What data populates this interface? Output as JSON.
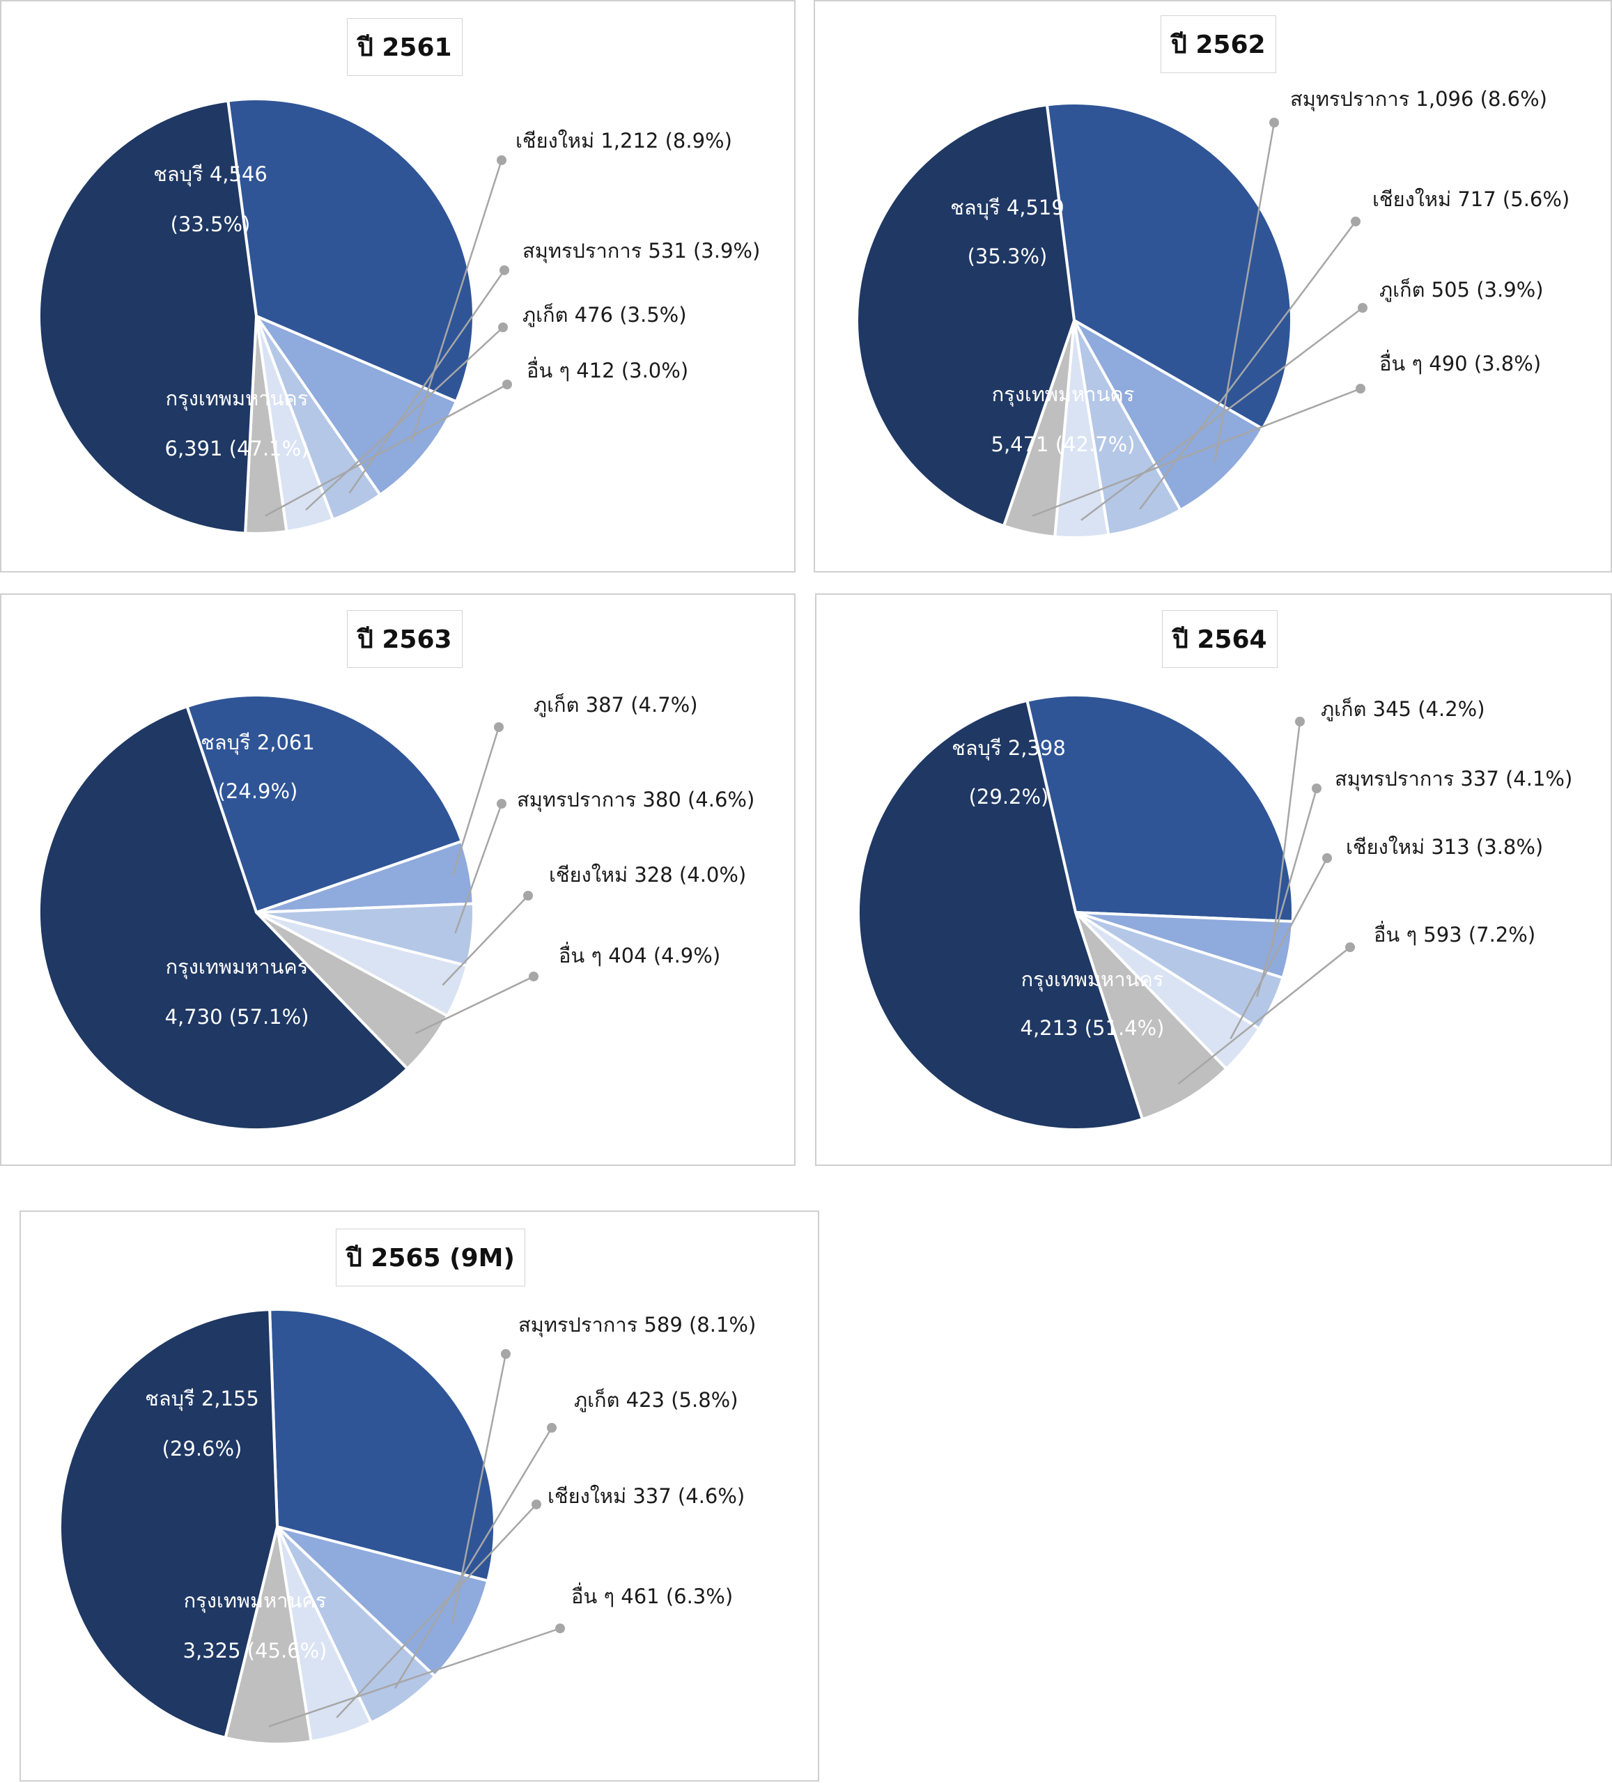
{
  "chart_data": [
    {
      "type": "pie",
      "title": "ปี 2561",
      "slices": [
        {
          "name": "ชลบุรี",
          "value": 4546,
          "pct": "33.5%",
          "label": "ชลบุรี 4,546",
          "label2": "(33.5%)",
          "color": "#2f5597"
        },
        {
          "name": "เชียงใหม่",
          "value": 1212,
          "pct": "8.9%",
          "label": "เชียงใหม่ 1,212 (8.9%)",
          "color": "#8faadc"
        },
        {
          "name": "สมุทรปราการ",
          "value": 531,
          "pct": "3.9%",
          "label": "สมุทรปราการ 531 (3.9%)",
          "color": "#b4c7e7"
        },
        {
          "name": "ภูเก็ต",
          "value": 476,
          "pct": "3.5%",
          "label": "ภูเก็ต 476 (3.5%)",
          "color": "#dae3f3"
        },
        {
          "name": "อื่น ๆ",
          "value": 412,
          "pct": "3.0%",
          "label": "อื่น ๆ 412 (3.0%)",
          "color": "#bfbfbf"
        },
        {
          "name": "กรุงเทพมหานคร",
          "value": 6391,
          "pct": "47.1%",
          "label": "กรุงเทพมหานคร",
          "label2": "6,391 (47.1%)",
          "color": "#1f3864"
        }
      ]
    },
    {
      "type": "pie",
      "title": "ปี 2562",
      "slices": [
        {
          "name": "ชลบุรี",
          "value": 4519,
          "pct": "35.3%",
          "label": "ชลบุรี 4,519",
          "label2": "(35.3%)",
          "color": "#2f5597"
        },
        {
          "name": "สมุทรปราการ",
          "value": 1096,
          "pct": "8.6%",
          "label": "สมุทรปราการ 1,096 (8.6%)",
          "color": "#8faadc"
        },
        {
          "name": "เชียงใหม่",
          "value": 717,
          "pct": "5.6%",
          "label": "เชียงใหม่ 717 (5.6%)",
          "color": "#b4c7e7"
        },
        {
          "name": "ภูเก็ต",
          "value": 505,
          "pct": "3.9%",
          "label": "ภูเก็ต 505 (3.9%)",
          "color": "#dae3f3"
        },
        {
          "name": "อื่น ๆ",
          "value": 490,
          "pct": "3.8%",
          "label": "อื่น ๆ 490 (3.8%)",
          "color": "#bfbfbf"
        },
        {
          "name": "กรุงเทพมหานคร",
          "value": 5471,
          "pct": "42.7%",
          "label": "กรุงเทพมหานคร",
          "label2": "5,471 (42.7%)",
          "color": "#1f3864"
        }
      ]
    },
    {
      "type": "pie",
      "title": "ปี 2563",
      "slices": [
        {
          "name": "ชลบุรี",
          "value": 2061,
          "pct": "24.9%",
          "label": "ชลบุรี 2,061",
          "label2": "(24.9%)",
          "color": "#2f5597"
        },
        {
          "name": "ภูเก็ต",
          "value": 387,
          "pct": "4.7%",
          "label": "ภูเก็ต 387 (4.7%)",
          "color": "#8faadc"
        },
        {
          "name": "สมุทรปราการ",
          "value": 380,
          "pct": "4.6%",
          "label": "สมุทรปราการ 380 (4.6%)",
          "color": "#b4c7e7"
        },
        {
          "name": "เชียงใหม่",
          "value": 328,
          "pct": "4.0%",
          "label": "เชียงใหม่ 328 (4.0%)",
          "color": "#dae3f3"
        },
        {
          "name": "อื่น ๆ",
          "value": 404,
          "pct": "4.9%",
          "label": "อื่น ๆ 404 (4.9%)",
          "color": "#bfbfbf"
        },
        {
          "name": "กรุงเทพมหานคร",
          "value": 4730,
          "pct": "57.1%",
          "label": "กรุงเทพมหานคร",
          "label2": "4,730 (57.1%)",
          "color": "#1f3864"
        }
      ]
    },
    {
      "type": "pie",
      "title": "ปี 2564",
      "slices": [
        {
          "name": "ชลบุรี",
          "value": 2398,
          "pct": "29.2%",
          "label": "ชลบุรี 2,398",
          "label2": "(29.2%)",
          "color": "#2f5597"
        },
        {
          "name": "ภูเก็ต",
          "value": 345,
          "pct": "4.2%",
          "label": "ภูเก็ต 345 (4.2%)",
          "color": "#8faadc"
        },
        {
          "name": "สมุทรปราการ",
          "value": 337,
          "pct": "4.1%",
          "label": "สมุทรปราการ 337 (4.1%)",
          "color": "#b4c7e7"
        },
        {
          "name": "เชียงใหม่",
          "value": 313,
          "pct": "3.8%",
          "label": "เชียงใหม่ 313 (3.8%)",
          "color": "#dae3f3"
        },
        {
          "name": "อื่น ๆ",
          "value": 593,
          "pct": "7.2%",
          "label": "อื่น ๆ 593 (7.2%)",
          "color": "#bfbfbf"
        },
        {
          "name": "กรุงเทพมหานคร",
          "value": 4213,
          "pct": "51.4%",
          "label": "กรุงเทพมหานคร",
          "label2": "4,213 (51.4%)",
          "color": "#1f3864"
        }
      ]
    },
    {
      "type": "pie",
      "title": "ปี 2565 (9M)",
      "slices": [
        {
          "name": "ชลบุรี",
          "value": 2155,
          "pct": "29.6%",
          "label": "ชลบุรี 2,155",
          "label2": "(29.6%)",
          "color": "#2f5597"
        },
        {
          "name": "สมุทรปราการ",
          "value": 589,
          "pct": "8.1%",
          "label": "สมุทรปราการ 589 (8.1%)",
          "color": "#8faadc"
        },
        {
          "name": "ภูเก็ต",
          "value": 423,
          "pct": "5.8%",
          "label": "ภูเก็ต 423 (5.8%)",
          "color": "#b4c7e7"
        },
        {
          "name": "เชียงใหม่",
          "value": 337,
          "pct": "4.6%",
          "label": "เชียงใหม่ 337 (4.6%)",
          "color": "#dae3f3"
        },
        {
          "name": "อื่น ๆ",
          "value": 461,
          "pct": "6.3%",
          "label": "อื่น ๆ 461 (6.3%)",
          "color": "#bfbfbf"
        },
        {
          "name": "กรุงเทพมหานคร",
          "value": 3325,
          "pct": "45.6%",
          "label": "กรุงเทพมหานคร",
          "label2": "3,325 (45.6%)",
          "color": "#1f3864"
        }
      ]
    }
  ]
}
